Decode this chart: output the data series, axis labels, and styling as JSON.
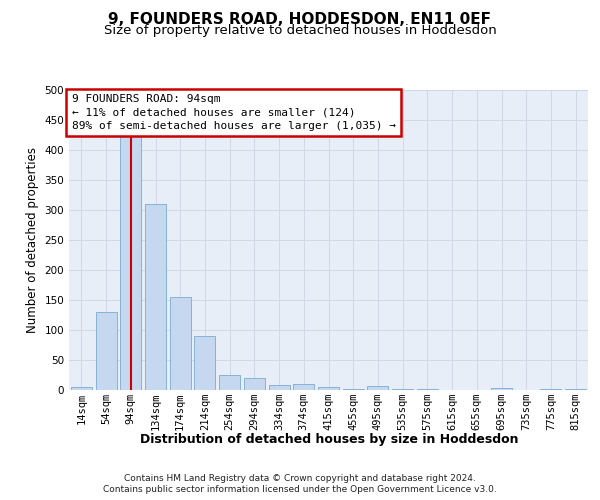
{
  "title": "9, FOUNDERS ROAD, HODDESDON, EN11 0EF",
  "subtitle": "Size of property relative to detached houses in Hoddesdon",
  "xlabel": "Distribution of detached houses by size in Hoddesdon",
  "ylabel": "Number of detached properties",
  "categories": [
    "14sqm",
    "54sqm",
    "94sqm",
    "134sqm",
    "174sqm",
    "214sqm",
    "254sqm",
    "294sqm",
    "334sqm",
    "374sqm",
    "415sqm",
    "455sqm",
    "495sqm",
    "535sqm",
    "575sqm",
    "615sqm",
    "655sqm",
    "695sqm",
    "735sqm",
    "775sqm",
    "815sqm"
  ],
  "values": [
    5,
    130,
    430,
    310,
    155,
    90,
    25,
    20,
    8,
    10,
    5,
    2,
    7,
    2,
    2,
    0,
    0,
    3,
    0,
    2,
    2
  ],
  "bar_color": "#c5d8f0",
  "bar_edge_color": "#6aa0cb",
  "highlight_index": 2,
  "highlight_color": "#cc0000",
  "ylim": [
    0,
    500
  ],
  "yticks": [
    0,
    50,
    100,
    150,
    200,
    250,
    300,
    350,
    400,
    450,
    500
  ],
  "grid_color": "#d0d8e8",
  "bg_color": "#e8eef8",
  "annotation_text": "9 FOUNDERS ROAD: 94sqm\n← 11% of detached houses are smaller (124)\n89% of semi-detached houses are larger (1,035) →",
  "annotation_box_color": "#ffffff",
  "annotation_border_color": "#cc0000",
  "footer_line1": "Contains HM Land Registry data © Crown copyright and database right 2024.",
  "footer_line2": "Contains public sector information licensed under the Open Government Licence v3.0.",
  "title_fontsize": 11,
  "subtitle_fontsize": 9.5,
  "ylabel_fontsize": 8.5,
  "tick_fontsize": 7.5,
  "xlabel_fontsize": 9,
  "annotation_fontsize": 8,
  "footer_fontsize": 6.5
}
